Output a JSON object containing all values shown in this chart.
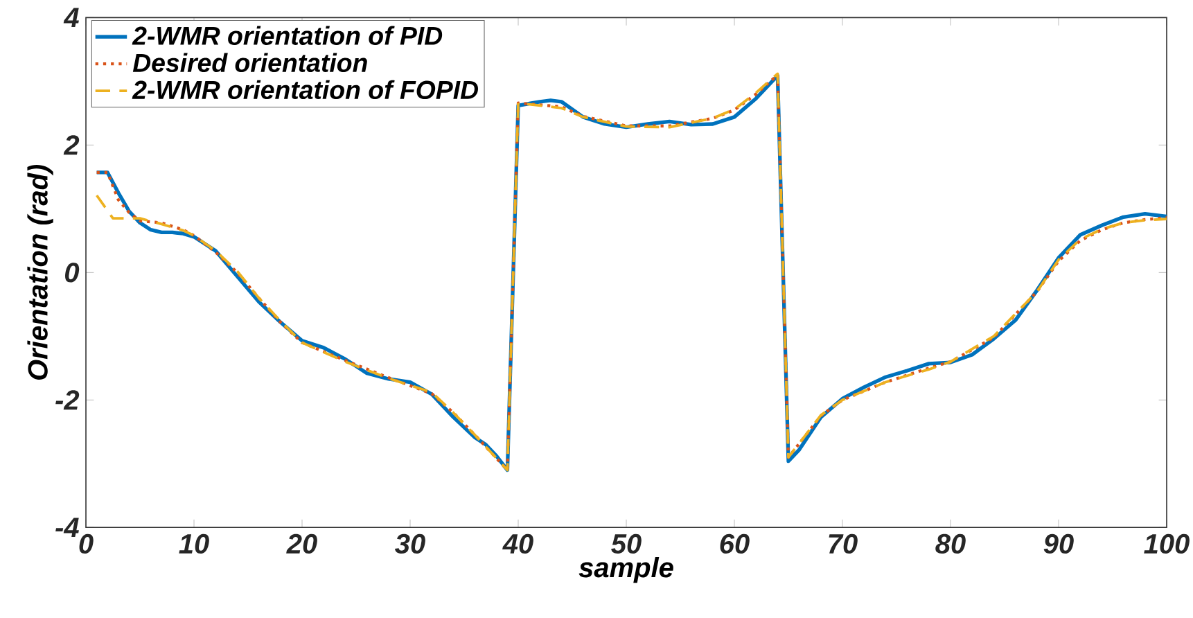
{
  "chart_data": {
    "type": "line",
    "xlabel": "sample",
    "ylabel": "Orientation (rad)",
    "xlim": [
      0,
      100
    ],
    "ylim": [
      -4,
      4
    ],
    "xticks": [
      0,
      10,
      20,
      30,
      40,
      50,
      60,
      70,
      80,
      90,
      100
    ],
    "yticks": [
      -4,
      -2,
      0,
      2,
      4
    ],
    "legend": "top left",
    "series": [
      {
        "name": "2-WMR orientation of PID",
        "color": "#0072bd",
        "line_style": "solid",
        "x": [
          1,
          2,
          3,
          4,
          5,
          6,
          7,
          8,
          9,
          10,
          12,
          14,
          16,
          18,
          20,
          22,
          24,
          26,
          28,
          30,
          32,
          34,
          36,
          37,
          38,
          39,
          40,
          42,
          43,
          44,
          46,
          48,
          50,
          52,
          54,
          56,
          58,
          60,
          62,
          64,
          65,
          66,
          68,
          70,
          72,
          74,
          76,
          78,
          80,
          82,
          84,
          86,
          88,
          90,
          92,
          94,
          96,
          98,
          100
        ],
        "values": [
          1.57,
          1.57,
          1.25,
          0.96,
          0.78,
          0.67,
          0.63,
          0.63,
          0.61,
          0.56,
          0.34,
          -0.06,
          -0.46,
          -0.78,
          -1.07,
          -1.18,
          -1.36,
          -1.58,
          -1.67,
          -1.72,
          -1.91,
          -2.27,
          -2.59,
          -2.7,
          -2.88,
          -3.1,
          2.62,
          2.68,
          2.7,
          2.68,
          2.44,
          2.33,
          2.28,
          2.33,
          2.37,
          2.32,
          2.33,
          2.44,
          2.73,
          3.09,
          -2.96,
          -2.78,
          -2.27,
          -1.98,
          -1.8,
          -1.64,
          -1.54,
          -1.43,
          -1.41,
          -1.29,
          -1.04,
          -0.75,
          -0.28,
          0.23,
          0.59,
          0.74,
          0.87,
          0.92,
          0.88
        ]
      },
      {
        "name": "Desired orientation",
        "color": "#d95319",
        "line_style": "dotted",
        "x": [
          1,
          2,
          3,
          4,
          5,
          7,
          9,
          10,
          12,
          14,
          16,
          18,
          20,
          24,
          28,
          32,
          34,
          36,
          39,
          40,
          44,
          46,
          50,
          54,
          58,
          60,
          62,
          64,
          65,
          68,
          70,
          74,
          78,
          80,
          84,
          88,
          90,
          92,
          94,
          96,
          98,
          100
        ],
        "values": [
          1.57,
          1.57,
          1.14,
          0.94,
          0.81,
          0.78,
          0.67,
          0.58,
          0.32,
          0.0,
          -0.4,
          -0.78,
          -1.1,
          -1.38,
          -1.65,
          -1.9,
          -2.2,
          -2.55,
          -3.1,
          2.66,
          2.6,
          2.45,
          2.3,
          2.3,
          2.42,
          2.55,
          2.8,
          3.1,
          -2.9,
          -2.25,
          -2.0,
          -1.72,
          -1.5,
          -1.4,
          -1.02,
          -0.3,
          0.18,
          0.5,
          0.67,
          0.78,
          0.83,
          0.86
        ]
      },
      {
        "name": "2-WMR orientation of FOPID",
        "color": "#edb120",
        "line_style": "dashed",
        "x": [
          1,
          2.5,
          5,
          7,
          9,
          10,
          12,
          14,
          16,
          18,
          20,
          24,
          28,
          32,
          34,
          36,
          39,
          40,
          44,
          46,
          50,
          54,
          58,
          60,
          62,
          64,
          65,
          68,
          70,
          74,
          78,
          80,
          84,
          88,
          90,
          92,
          94,
          96,
          98,
          100
        ],
        "values": [
          1.21,
          0.85,
          0.85,
          0.76,
          0.66,
          0.58,
          0.34,
          0.02,
          -0.4,
          -0.76,
          -1.1,
          -1.4,
          -1.66,
          -1.88,
          -2.2,
          -2.55,
          -3.1,
          2.66,
          2.58,
          2.44,
          2.29,
          2.28,
          2.42,
          2.56,
          2.82,
          3.12,
          -2.9,
          -2.24,
          -2.0,
          -1.72,
          -1.52,
          -1.4,
          -1.0,
          -0.3,
          0.2,
          0.52,
          0.68,
          0.78,
          0.82,
          0.84
        ]
      }
    ]
  }
}
